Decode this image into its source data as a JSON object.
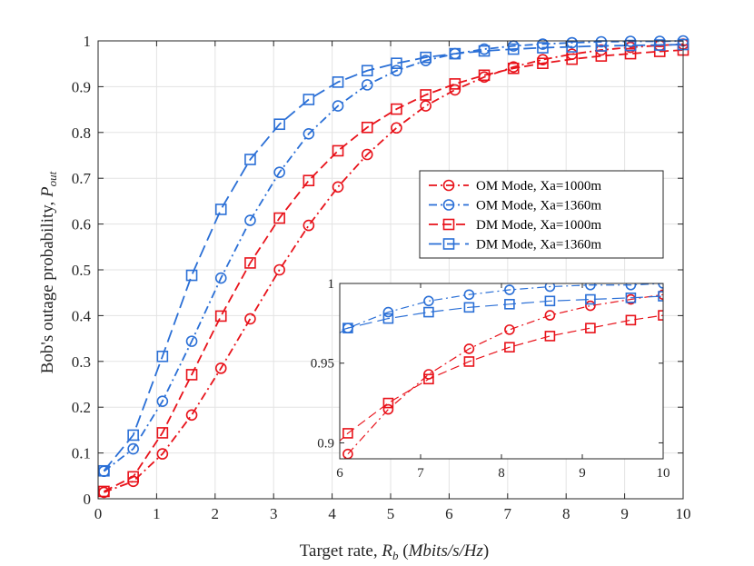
{
  "chart_data": {
    "type": "line",
    "xlabel": "Target rate, ",
    "xlabel_math": "R_b (Mbits/s/Hz)",
    "ylabel": "Bob's outage probability, ",
    "ylabel_math": "P_out",
    "xlim": [
      0,
      10
    ],
    "ylim": [
      0,
      1
    ],
    "x_ticks": [
      "0",
      "1",
      "2",
      "3",
      "4",
      "5",
      "6",
      "7",
      "8",
      "9",
      "10"
    ],
    "y_ticks": [
      "0",
      "0.1",
      "0.2",
      "0.3",
      "0.4",
      "0.5",
      "0.6",
      "0.7",
      "0.8",
      "0.9",
      "1"
    ],
    "grid": true,
    "legend_position": "right-middle",
    "series": [
      {
        "name": "OM Mode, Xa=1000m",
        "color": "#e8121a",
        "dash": "dashdot",
        "marker": "circle",
        "x": [
          0.1,
          0.6,
          1.1,
          1.6,
          2.1,
          2.6,
          3.1,
          3.6,
          4.1,
          4.6,
          5.1,
          5.6,
          6.1,
          6.6,
          7.1,
          7.6,
          8.1,
          8.6,
          9.1,
          9.6,
          10.0
        ],
        "y": [
          0.014,
          0.038,
          0.098,
          0.183,
          0.285,
          0.393,
          0.5,
          0.597,
          0.681,
          0.752,
          0.81,
          0.858,
          0.893,
          0.921,
          0.943,
          0.959,
          0.971,
          0.98,
          0.986,
          0.99,
          0.993
        ],
        "marker_x": [
          0.1,
          0.6,
          1.1,
          1.6,
          2.1,
          2.6,
          3.1,
          3.6,
          4.1,
          4.6,
          5.1,
          5.6,
          6.1,
          6.6,
          7.1,
          7.6,
          8.1,
          8.6,
          9.1,
          9.6,
          10.0
        ]
      },
      {
        "name": "OM Mode, Xa=1360m",
        "color": "#2a6fd6",
        "dash": "dashdot",
        "marker": "circle",
        "x": [
          0.1,
          0.6,
          1.1,
          1.6,
          2.1,
          2.6,
          3.1,
          3.6,
          4.1,
          4.6,
          5.1,
          5.6,
          6.1,
          6.6,
          7.1,
          7.6,
          8.1,
          8.6,
          9.1,
          9.6,
          10.0
        ],
        "y": [
          0.06,
          0.109,
          0.213,
          0.344,
          0.482,
          0.608,
          0.713,
          0.797,
          0.858,
          0.904,
          0.935,
          0.957,
          0.972,
          0.982,
          0.989,
          0.993,
          0.996,
          0.998,
          0.999,
          0.999,
          1.0
        ],
        "marker_x": [
          0.1,
          0.6,
          1.1,
          1.6,
          2.1,
          2.6,
          3.1,
          3.6,
          4.1,
          4.6,
          5.1,
          5.6,
          6.1,
          6.6,
          7.1,
          7.6,
          8.1,
          8.6,
          9.1,
          9.6,
          10.0
        ]
      },
      {
        "name": "DM Mode, Xa=1000m",
        "color": "#e8121a",
        "dash": "dash",
        "marker": "square",
        "x": [
          0.1,
          0.6,
          1.1,
          1.6,
          2.1,
          2.6,
          3.1,
          3.6,
          4.1,
          4.6,
          5.1,
          5.6,
          6.1,
          6.6,
          7.1,
          7.6,
          8.1,
          8.6,
          9.1,
          9.6,
          10.0
        ],
        "y": [
          0.016,
          0.048,
          0.144,
          0.271,
          0.399,
          0.515,
          0.613,
          0.695,
          0.76,
          0.811,
          0.851,
          0.882,
          0.906,
          0.925,
          0.94,
          0.951,
          0.96,
          0.967,
          0.972,
          0.977,
          0.98
        ],
        "marker_x": [
          0.1,
          0.6,
          1.1,
          1.6,
          2.1,
          2.6,
          3.1,
          3.6,
          4.1,
          4.6,
          5.1,
          5.6,
          6.1,
          6.6,
          7.1,
          7.6,
          8.1,
          8.6,
          9.1,
          9.6,
          10.0
        ]
      },
      {
        "name": "DM Mode, Xa=1360m",
        "color": "#2a6fd6",
        "dash": "longdash",
        "marker": "square",
        "x": [
          0.1,
          0.6,
          1.1,
          1.6,
          2.1,
          2.6,
          3.1,
          3.6,
          4.1,
          4.6,
          5.1,
          5.6,
          6.1,
          6.6,
          7.1,
          7.6,
          8.1,
          8.6,
          9.1,
          9.6,
          10.0
        ],
        "y": [
          0.061,
          0.139,
          0.311,
          0.488,
          0.632,
          0.741,
          0.818,
          0.872,
          0.91,
          0.935,
          0.951,
          0.964,
          0.972,
          0.978,
          0.982,
          0.985,
          0.987,
          0.989,
          0.99,
          0.991,
          0.992
        ],
        "marker_x": [
          0.1,
          0.6,
          1.1,
          1.6,
          2.1,
          2.6,
          3.1,
          3.6,
          4.1,
          4.6,
          5.1,
          5.6,
          6.1,
          6.6,
          7.1,
          7.6,
          8.1,
          8.6,
          9.1,
          9.6,
          10.0
        ]
      }
    ],
    "inset": {
      "xlim": [
        6,
        10
      ],
      "ylim": [
        0.89,
        1.0
      ],
      "x_ticks": [
        "6",
        "7",
        "8",
        "9",
        "10"
      ],
      "y_ticks": [
        {
          "v": 0.9,
          "label": "0.9"
        },
        {
          "v": 0.95,
          "label": "0.95"
        },
        {
          "v": 1.0,
          "label": "1"
        }
      ],
      "grid": false
    }
  }
}
